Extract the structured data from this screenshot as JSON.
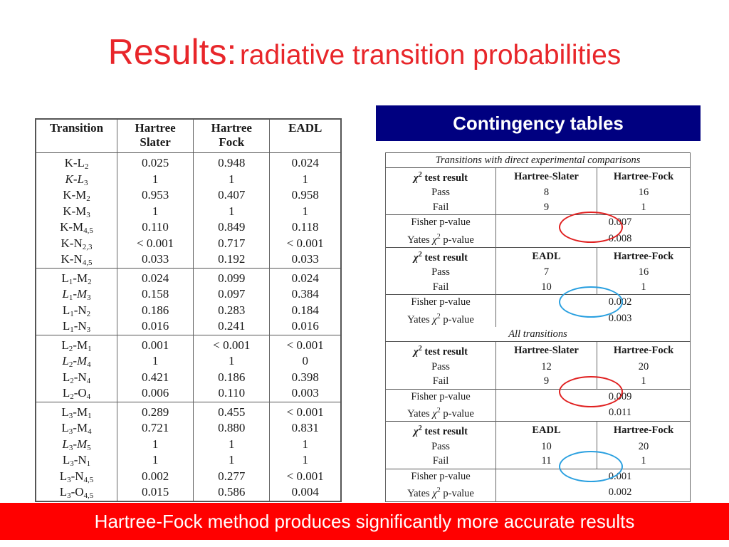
{
  "title": {
    "main": "Results:",
    "sub": "radiative transition probabilities"
  },
  "left_table": {
    "headers": [
      [
        "Transition"
      ],
      [
        "Hartree",
        "Slater"
      ],
      [
        "Hartree",
        "Fock"
      ],
      [
        "EADL"
      ]
    ],
    "groups": [
      [
        {
          "base": "K-L",
          "sub": "2",
          "italic": false,
          "hs": "0.025",
          "hf": "0.948",
          "eadl": "0.024"
        },
        {
          "base": "K-L",
          "sub": "3",
          "italic": true,
          "hs": "1",
          "hf": "1",
          "eadl": "1"
        },
        {
          "base": "K-M",
          "sub": "2",
          "italic": false,
          "hs": "0.953",
          "hf": "0.407",
          "eadl": "0.958"
        },
        {
          "base": "K-M",
          "sub": "3",
          "italic": false,
          "hs": "1",
          "hf": "1",
          "eadl": "1"
        },
        {
          "base": "K-M",
          "sub": "4,5",
          "italic": false,
          "hs": "0.110",
          "hf": "0.849",
          "eadl": "0.118"
        },
        {
          "base": "K-N",
          "sub": "2,3",
          "italic": false,
          "hs": "< 0.001",
          "hf": "0.717",
          "eadl": "< 0.001"
        },
        {
          "base": "K-N",
          "sub": "4,5",
          "italic": false,
          "hs": "0.033",
          "hf": "0.192",
          "eadl": "0.033"
        }
      ],
      [
        {
          "p": "L",
          "ps": "1",
          "base": "-M",
          "sub": "2",
          "italic": false,
          "hs": "0.024",
          "hf": "0.099",
          "eadl": "0.024"
        },
        {
          "p": "L",
          "ps": "1",
          "base": "-M",
          "sub": "3",
          "italic": true,
          "hs": "0.158",
          "hf": "0.097",
          "eadl": "0.384"
        },
        {
          "p": "L",
          "ps": "1",
          "base": "-N",
          "sub": "2",
          "italic": false,
          "hs": "0.186",
          "hf": "0.283",
          "eadl": "0.184"
        },
        {
          "p": "L",
          "ps": "1",
          "base": "-N",
          "sub": "3",
          "italic": false,
          "hs": "0.016",
          "hf": "0.241",
          "eadl": "0.016"
        }
      ],
      [
        {
          "p": "L",
          "ps": "2",
          "base": "-M",
          "sub": "1",
          "italic": false,
          "hs": "0.001",
          "hf": "< 0.001",
          "eadl": "< 0.001"
        },
        {
          "p": "L",
          "ps": "2",
          "base": "-M",
          "sub": "4",
          "italic": true,
          "hs": "1",
          "hf": "1",
          "eadl": "0"
        },
        {
          "p": "L",
          "ps": "2",
          "base": "-N",
          "sub": "4",
          "italic": false,
          "hs": "0.421",
          "hf": "0.186",
          "eadl": "0.398"
        },
        {
          "p": "L",
          "ps": "2",
          "base": "-O",
          "sub": "4",
          "italic": false,
          "hs": "0.006",
          "hf": "0.110",
          "eadl": "0.003"
        }
      ],
      [
        {
          "p": "L",
          "ps": "3",
          "base": "-M",
          "sub": "1",
          "italic": false,
          "hs": "0.289",
          "hf": "0.455",
          "eadl": "< 0.001"
        },
        {
          "p": "L",
          "ps": "3",
          "base": "-M",
          "sub": "4",
          "italic": false,
          "hs": "0.721",
          "hf": "0.880",
          "eadl": "0.831"
        },
        {
          "p": "L",
          "ps": "3",
          "base": "-M",
          "sub": "5",
          "italic": true,
          "hs": "1",
          "hf": "1",
          "eadl": "1"
        },
        {
          "p": "L",
          "ps": "3",
          "base": "-N",
          "sub": "1",
          "italic": false,
          "hs": "1",
          "hf": "1",
          "eadl": "1"
        },
        {
          "p": "L",
          "ps": "3",
          "base": "-N",
          "sub": "4,5",
          "italic": false,
          "hs": "0.002",
          "hf": "0.277",
          "eadl": "< 0.001"
        },
        {
          "p": "L",
          "ps": "3",
          "base": "-O",
          "sub": "4,5",
          "italic": false,
          "hs": "0.015",
          "hf": "0.586",
          "eadl": "0.004"
        }
      ]
    ]
  },
  "contingency_header": "Contingency tables",
  "right_table": {
    "sections": [
      {
        "label": "Transitions with direct experimental comparisons",
        "blocks": [
          {
            "test_label": "test result",
            "col_a": "Hartree-Slater",
            "col_b": "Hartree-Fock",
            "pass_label": "Pass",
            "pass_a": "8",
            "pass_b": "16",
            "fail_label": "Fail",
            "fail_a": "9",
            "fail_b": "1",
            "fisher_label": "Fisher p-value",
            "fisher": "0.007",
            "yates_label": "Yates",
            "yates_suffix": "p-value",
            "yates": "0.008"
          },
          {
            "test_label": "test result",
            "col_a": "EADL",
            "col_b": "Hartree-Fock",
            "pass_label": "Pass",
            "pass_a": "7",
            "pass_b": "16",
            "fail_label": "Fail",
            "fail_a": "10",
            "fail_b": "1",
            "fisher_label": "Fisher p-value",
            "fisher": "0.002",
            "yates_label": "Yates",
            "yates_suffix": "p-value",
            "yates": "0.003"
          }
        ]
      },
      {
        "label": "All transitions",
        "blocks": [
          {
            "test_label": "test result",
            "col_a": "Hartree-Slater",
            "col_b": "Hartree-Fock",
            "pass_label": "Pass",
            "pass_a": "12",
            "pass_b": "20",
            "fail_label": "Fail",
            "fail_a": "9",
            "fail_b": "1",
            "fisher_label": "Fisher p-value",
            "fisher": "0.009",
            "yates_label": "Yates",
            "yates_suffix": "p-value",
            "yates": "0.011"
          },
          {
            "test_label": "test result",
            "col_a": "EADL",
            "col_b": "Hartree-Fock",
            "pass_label": "Pass",
            "pass_a": "10",
            "pass_b": "20",
            "fail_label": "Fail",
            "fail_a": "11",
            "fail_b": "1",
            "fisher_label": "Fisher p-value",
            "fisher": "0.001",
            "yates_label": "Yates",
            "yates_suffix": "p-value",
            "yates": "0.002"
          }
        ]
      }
    ]
  },
  "footer": "Hartree-Fock method produces significantly more accurate results",
  "colors": {
    "title": "#e8262a",
    "header_bg": "#000080",
    "footer_bg": "#ff0000",
    "red_circle": "#e02020",
    "blue_circle": "#2aa0e0"
  }
}
